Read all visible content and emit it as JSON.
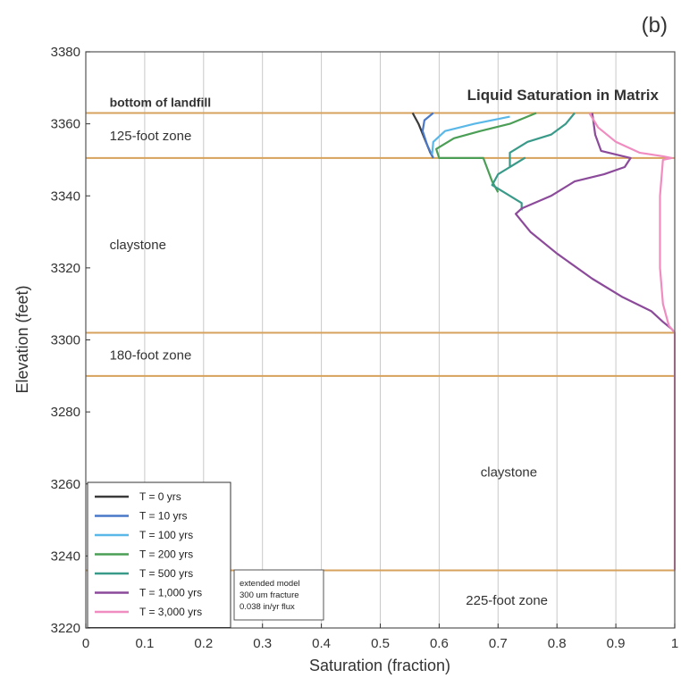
{
  "chart_data": {
    "type": "line",
    "panel_label": "(b)",
    "title": "Liquid Saturation in Matrix",
    "xlabel": "Saturation (fraction)",
    "ylabel": "Elevation (feet)",
    "xlim": [
      0,
      1
    ],
    "ylim": [
      3220,
      3380
    ],
    "x_ticks": [
      "0",
      "0.1",
      "0.2",
      "0.3",
      "0.4",
      "0.5",
      "0.6",
      "0.7",
      "0.8",
      "0.9",
      "1"
    ],
    "y_ticks": [
      "3220",
      "3240",
      "3260",
      "3280",
      "3300",
      "3320",
      "3340",
      "3360",
      "3380"
    ],
    "grid": "vertical",
    "legend_position": "bottom-left",
    "boundaries": [
      {
        "elevation": 3363,
        "color": "#d6a25c"
      },
      {
        "elevation": 3350.5,
        "color": "#d6a25c"
      },
      {
        "elevation": 3302,
        "color": "#d6a25c"
      },
      {
        "elevation": 3290,
        "color": "#d6a25c"
      },
      {
        "elevation": 3236,
        "color": "#d6a25c"
      }
    ],
    "annotations": [
      {
        "text": "bottom of landfill",
        "x": 0.01,
        "y": 3364.8,
        "bold": true
      },
      {
        "text": "125-foot zone",
        "x": 0.01,
        "y": 3355.5,
        "bold": false
      },
      {
        "text": "claystone",
        "x": 0.01,
        "y": 3325.2,
        "bold": false
      },
      {
        "text": "180-foot zone",
        "x": 0.01,
        "y": 3294.5,
        "bold": false
      },
      {
        "text": "claystone",
        "x": 0.64,
        "y": 3262,
        "bold": false
      },
      {
        "text": "225-foot zone",
        "x": 0.615,
        "y": 3226.5,
        "bold": false
      }
    ],
    "note": [
      "extended model",
      "300 um fracture",
      "0.038 in/yr flux"
    ],
    "series": [
      {
        "name": "T = 0 yrs",
        "color": "#3a3a3a",
        "points": [
          [
            0.555,
            3363
          ],
          [
            0.565,
            3360
          ],
          [
            0.575,
            3356
          ],
          [
            0.585,
            3352
          ],
          [
            0.59,
            3350.5
          ]
        ]
      },
      {
        "name": "T = 10 yrs",
        "color": "#4a78c8",
        "points": [
          [
            0.59,
            3363
          ],
          [
            0.575,
            3361
          ],
          [
            0.572,
            3358
          ],
          [
            0.58,
            3354
          ],
          [
            0.59,
            3350.5
          ]
        ]
      },
      {
        "name": "T = 100 yrs",
        "color": "#5ab8e8",
        "points": [
          [
            0.72,
            3362
          ],
          [
            0.66,
            3360
          ],
          [
            0.61,
            3358
          ],
          [
            0.59,
            3355
          ],
          [
            0.588,
            3351.5
          ]
        ]
      },
      {
        "name": "T = 200 yrs",
        "color": "#4a9e55",
        "points": [
          [
            0.765,
            3363
          ],
          [
            0.72,
            3360
          ],
          [
            0.67,
            3358
          ],
          [
            0.625,
            3356
          ],
          [
            0.595,
            3353
          ],
          [
            0.6,
            3350.5
          ],
          [
            0.675,
            3350.5
          ],
          [
            0.69,
            3344
          ],
          [
            0.7,
            3341
          ]
        ]
      },
      {
        "name": "T = 500 yrs",
        "color": "#3a9a8a",
        "points": [
          [
            0.83,
            3363
          ],
          [
            0.815,
            3360
          ],
          [
            0.79,
            3357
          ],
          [
            0.75,
            3355
          ],
          [
            0.72,
            3352
          ],
          [
            0.72,
            3348
          ],
          [
            0.745,
            3350.5
          ],
          [
            0.73,
            3349
          ],
          [
            0.7,
            3346
          ],
          [
            0.69,
            3343
          ],
          [
            0.71,
            3341
          ],
          [
            0.74,
            3338
          ],
          [
            0.74,
            3336
          ]
        ]
      },
      {
        "name": "T = 1,000 yrs",
        "color": "#8c4a9a",
        "points": [
          [
            0.86,
            3363
          ],
          [
            0.865,
            3357
          ],
          [
            0.875,
            3352.5
          ],
          [
            0.925,
            3350.5
          ],
          [
            0.915,
            3348
          ],
          [
            0.88,
            3346
          ],
          [
            0.83,
            3344
          ],
          [
            0.79,
            3340
          ],
          [
            0.74,
            3336.5
          ],
          [
            0.73,
            3335
          ],
          [
            0.755,
            3330
          ],
          [
            0.8,
            3324
          ],
          [
            0.86,
            3317
          ],
          [
            0.91,
            3312
          ],
          [
            0.96,
            3308
          ],
          [
            0.98,
            3305
          ],
          [
            0.995,
            3303
          ],
          [
            1.0,
            3302
          ]
        ]
      },
      {
        "name": "T = 3,000 yrs",
        "color": "#f08cc0",
        "points": [
          [
            0.855,
            3363
          ],
          [
            0.87,
            3359
          ],
          [
            0.9,
            3355
          ],
          [
            0.94,
            3352
          ],
          [
            0.98,
            3351
          ],
          [
            0.995,
            3350.5
          ],
          [
            0.98,
            3350
          ],
          [
            0.975,
            3340
          ],
          [
            0.975,
            3320
          ],
          [
            0.98,
            3310
          ],
          [
            0.99,
            3304
          ],
          [
            1.0,
            3302
          ],
          [
            1.0,
            3260
          ],
          [
            1.0,
            3236
          ]
        ]
      }
    ]
  }
}
